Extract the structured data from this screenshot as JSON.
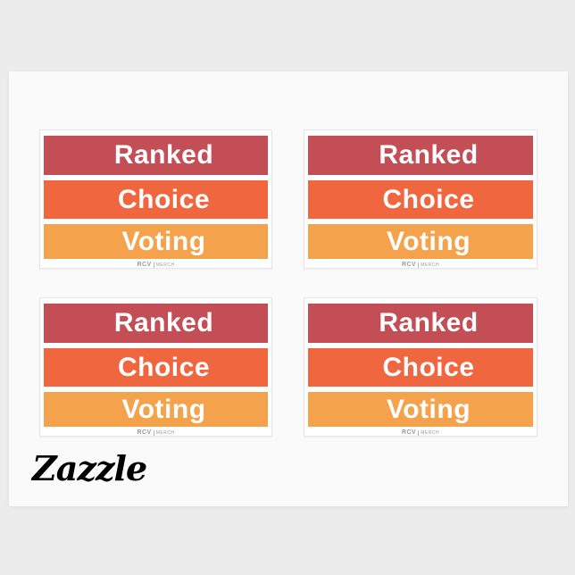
{
  "page": {
    "background_color": "#ececec",
    "sheet_color": "#fafafa",
    "card_color": "#ffffff"
  },
  "branding": {
    "logo_text": "Zazzle",
    "logo_color": "#000000"
  },
  "sticker": {
    "lines": [
      {
        "label": "Ranked",
        "color": "#c34e56"
      },
      {
        "label": "Choice",
        "color": "#f0663f"
      },
      {
        "label": "Voting",
        "color": "#f5a24c"
      }
    ],
    "footer_brand": "RCV",
    "footer_brand_secondary": "MERCH",
    "footer_text_color": "#9b9b9b",
    "text_color": "#ffffff"
  },
  "stickers_count": 4
}
